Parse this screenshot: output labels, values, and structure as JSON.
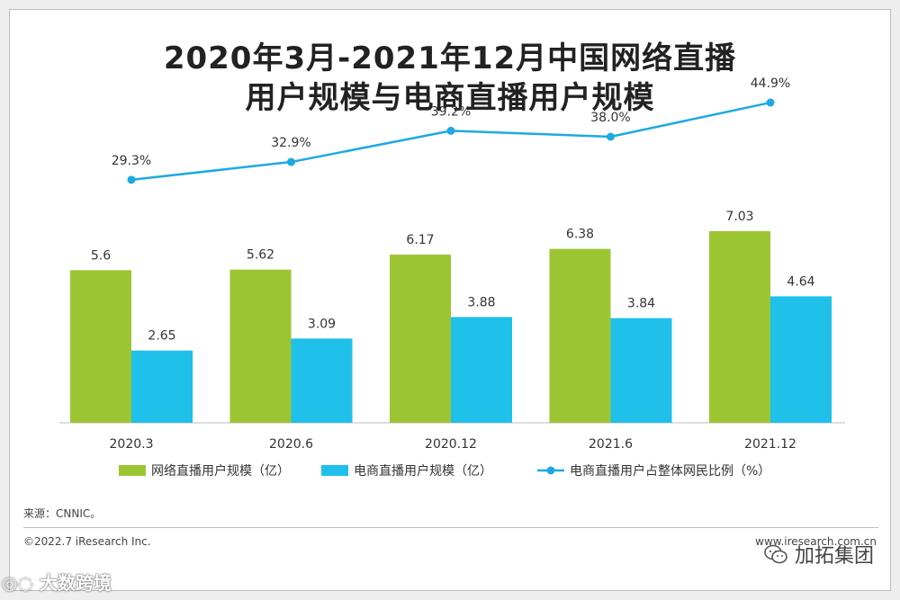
{
  "title": {
    "line1": "2020年3月-2021年12月中国网络直播",
    "line2": "用户规模与电商直播用户规模"
  },
  "chart_data": {
    "type": "bar",
    "categories": [
      "2020.3",
      "2020.6",
      "2020.12",
      "2021.6",
      "2021.12"
    ],
    "series": [
      {
        "name": "网络直播用户规模（亿）",
        "type": "bar",
        "color": "#9cc534",
        "values": [
          5.6,
          5.62,
          6.17,
          6.38,
          7.03
        ],
        "labels": [
          "5.6",
          "5.62",
          "6.17",
          "6.38",
          "7.03"
        ]
      },
      {
        "name": "电商直播用户规模（亿）",
        "type": "bar",
        "color": "#1fc0e9",
        "values": [
          2.65,
          3.09,
          3.88,
          3.84,
          4.64
        ],
        "labels": [
          "2.65",
          "3.09",
          "3.88",
          "3.84",
          "4.64"
        ]
      },
      {
        "name": "电商直播用户占整体网民比例（%）",
        "type": "line",
        "color": "#1fa9e1",
        "values": [
          29.3,
          32.9,
          39.2,
          38.0,
          44.9
        ],
        "labels": [
          "29.3%",
          "32.9%",
          "39.2%",
          "38.0%",
          "44.9%"
        ]
      }
    ],
    "ylim_bar": [
      0,
      8.5
    ],
    "legend_position": "bottom"
  },
  "footer": {
    "source": "来源：CNNIC。",
    "copyright": "©2022.7 iResearch Inc.",
    "website": "www.iresearch.com.cn"
  },
  "watermarks": {
    "left": "大数跨境",
    "right": "加拓集团"
  }
}
